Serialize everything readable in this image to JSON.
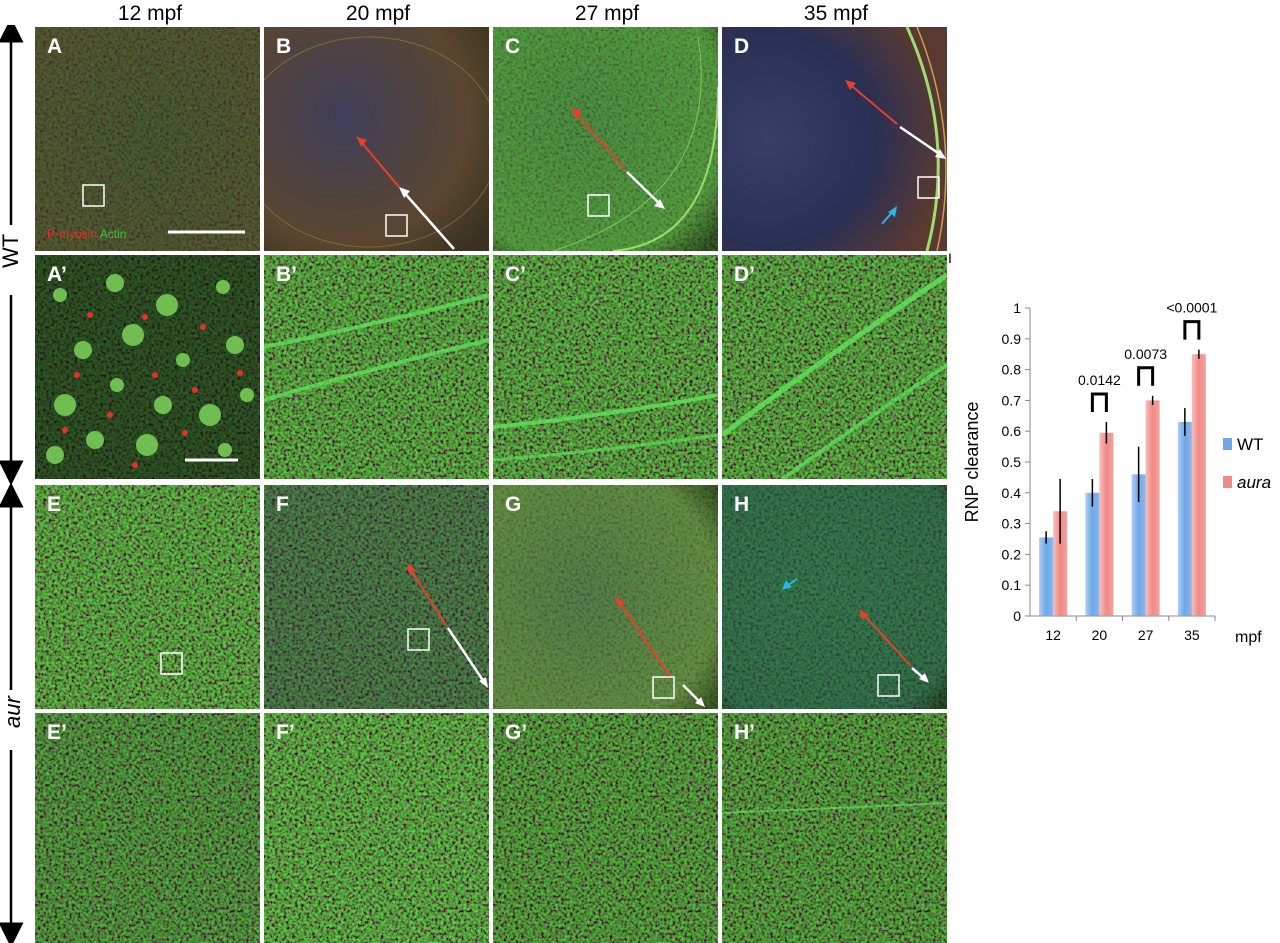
{
  "columns": [
    "12 mpf",
    "20 mpf",
    "27 mpf",
    "35 mpf"
  ],
  "rows": {
    "wt_label": "WT",
    "aur_label": "aur"
  },
  "panels": {
    "A": "A",
    "B": "B",
    "C": "C",
    "D": "D",
    "A2": "A’",
    "B2": "B’",
    "C2": "C’",
    "D2": "D’",
    "E": "E",
    "F": "F",
    "G": "G",
    "H": "H",
    "E2": "E’",
    "F2": "F’",
    "G2": "G’",
    "H2": "H’"
  },
  "stain_legend": {
    "red": "P-myosin",
    "green": "Actin"
  },
  "panel_I_label": "I",
  "chart_data": {
    "type": "bar",
    "categories": [
      "12",
      "20",
      "27",
      "35"
    ],
    "xlabel": "mpf",
    "ylabel": "RNP clearance",
    "ylim": [
      0,
      1
    ],
    "yticks": [
      "0",
      "0.1",
      "0.2",
      "0.3",
      "0.4",
      "0.5",
      "0.6",
      "0.7",
      "0.8",
      "0.9",
      "1"
    ],
    "legend_position": "right",
    "series": [
      {
        "name": "WT",
        "values": [
          0.255,
          0.4,
          0.46,
          0.63
        ],
        "errors": [
          0.02,
          0.045,
          0.09,
          0.045
        ],
        "color": "#6fa6e8"
      },
      {
        "name": "aura",
        "values": [
          0.34,
          0.595,
          0.7,
          0.85
        ],
        "errors": [
          0.105,
          0.035,
          0.015,
          0.015
        ],
        "color": "#f08a86"
      }
    ],
    "significance": [
      {
        "category": "20",
        "p": "0.0142"
      },
      {
        "category": "27",
        "p": "0.0073"
      },
      {
        "category": "35",
        "p": "<0.0001"
      }
    ]
  }
}
